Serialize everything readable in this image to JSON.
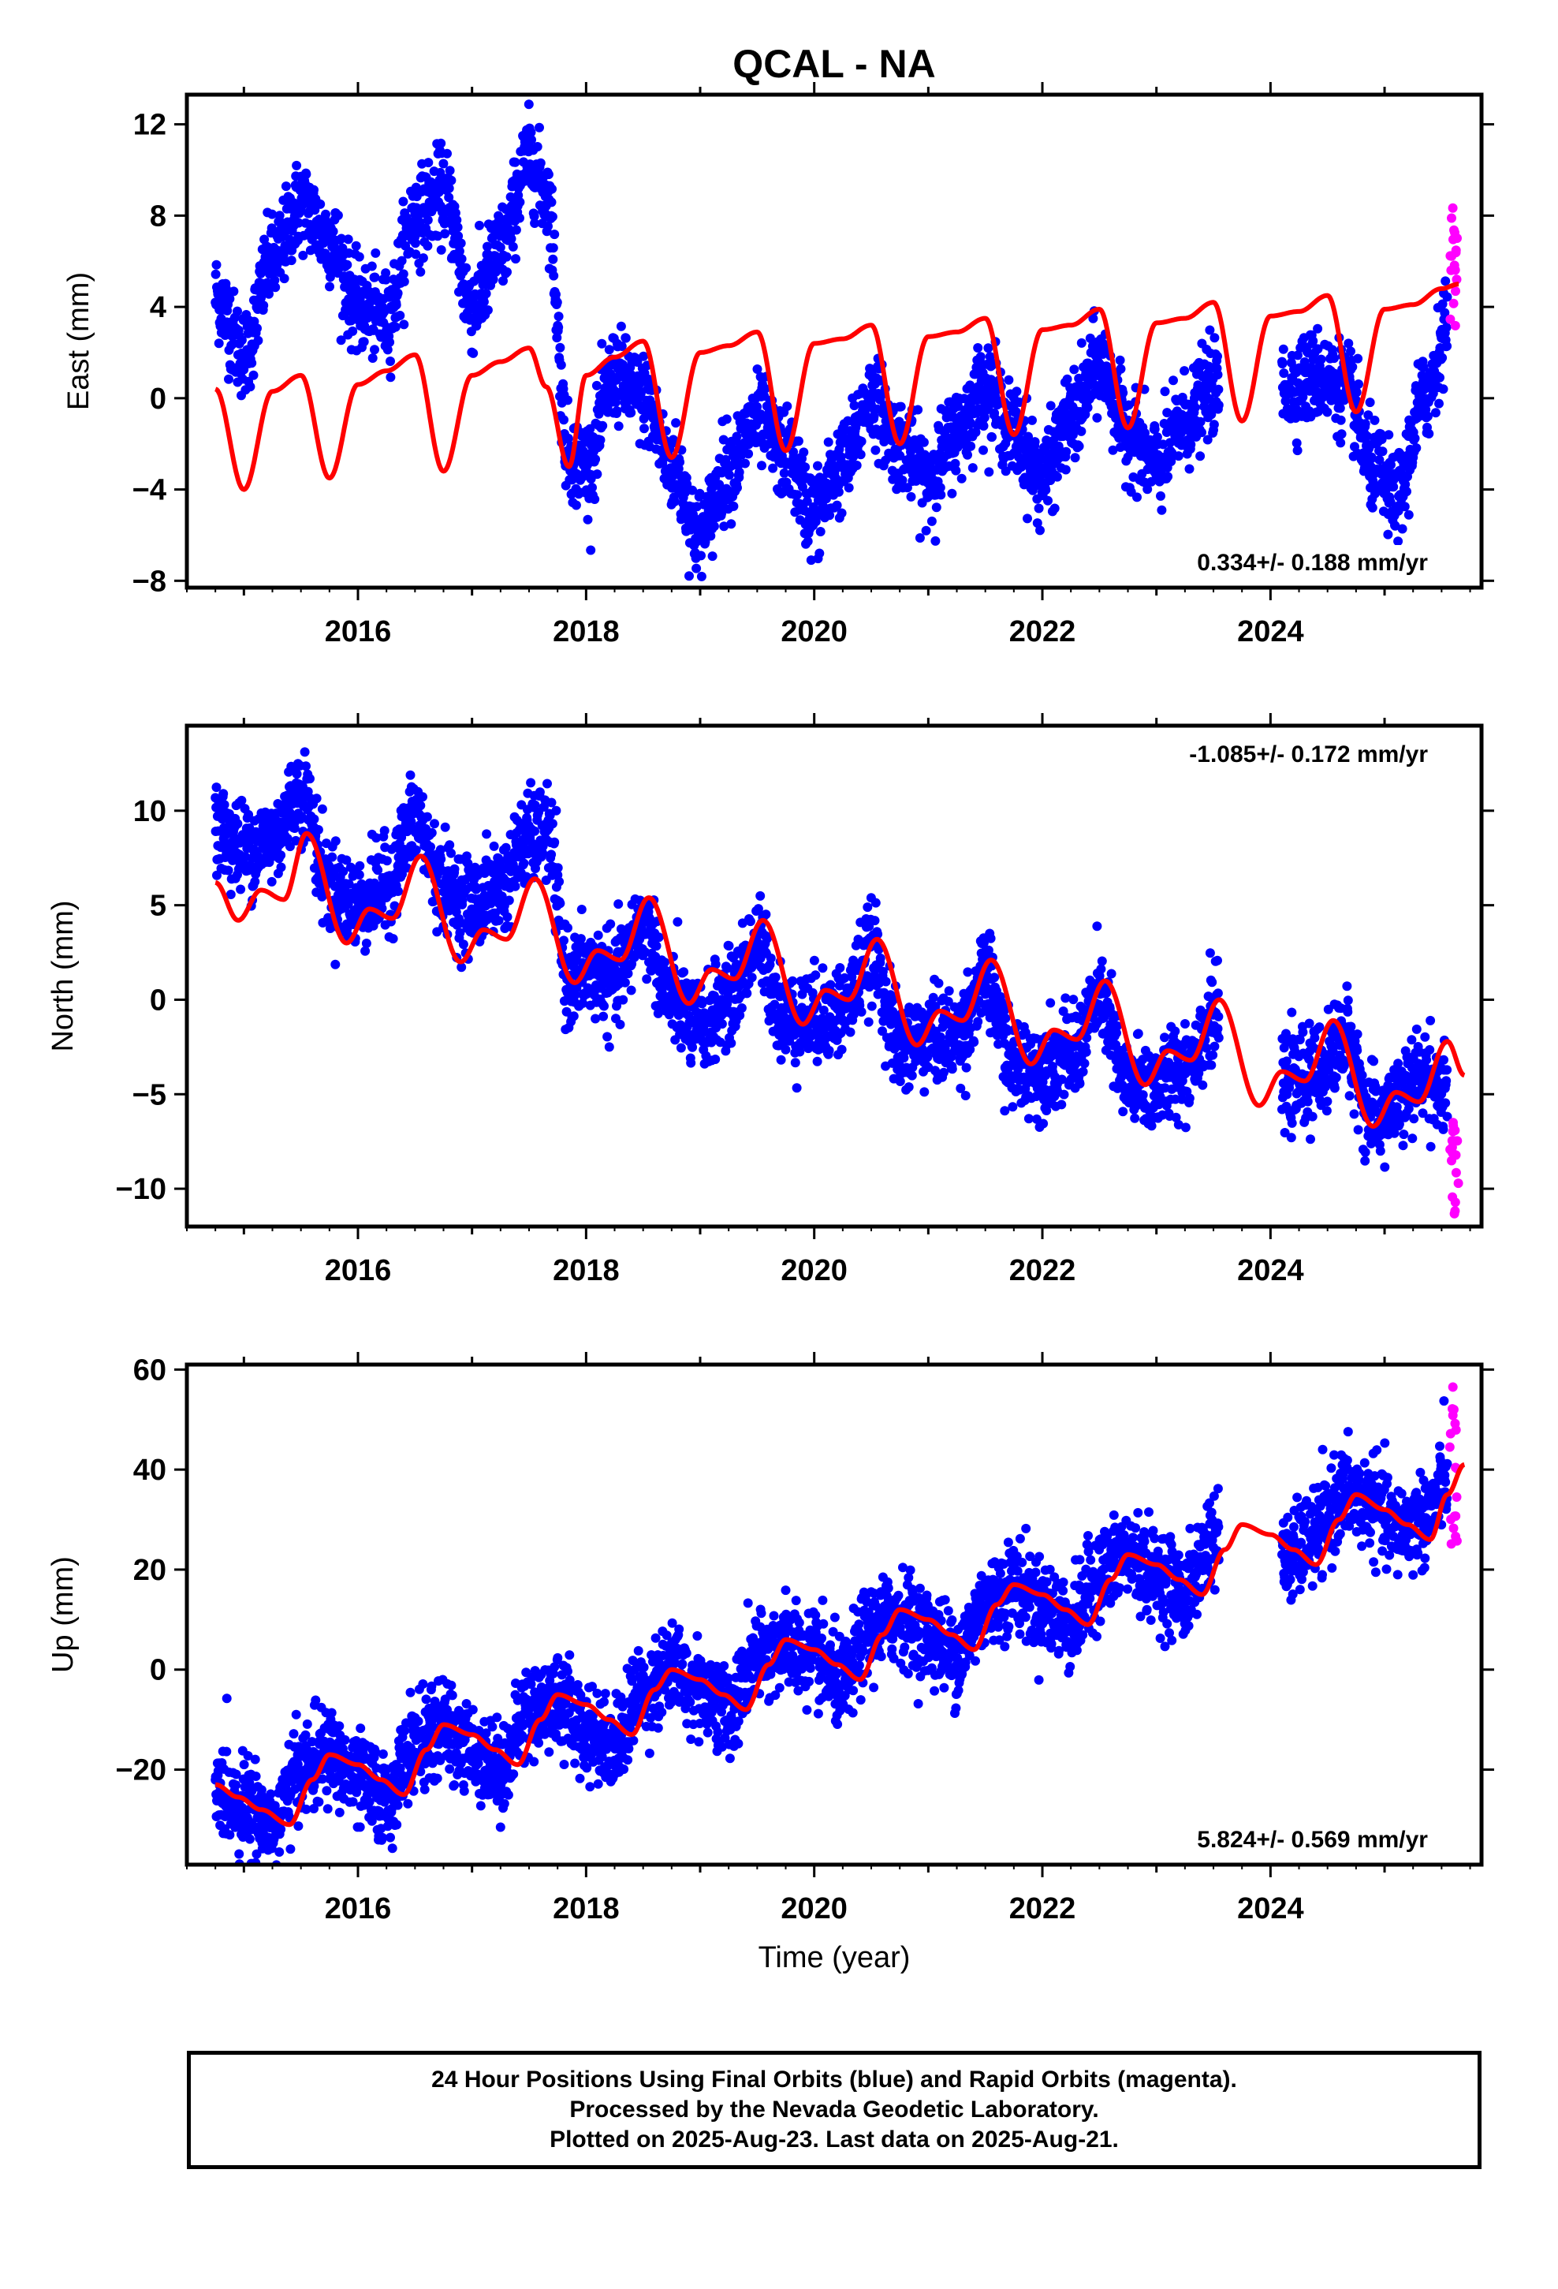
{
  "title": "QCAL - NA",
  "footer": {
    "line1": "24 Hour Positions Using Final Orbits (blue) and Rapid Orbits (magenta).",
    "line2": "Processed by the Nevada Geodetic Laboratory.",
    "line3": "Plotted on 2025-Aug-23. Last data on 2025-Aug-21."
  },
  "colors": {
    "final_orbits": "#0000ff",
    "rapid_orbits": "#ff00ff",
    "model": "#ff0000",
    "frame": "#000000"
  },
  "chart_data": [
    {
      "type": "scatter",
      "id": "east",
      "ylabel": "East (mm)",
      "xlabel": "",
      "rate": "0.334+/- 0.188 mm/yr",
      "xlim": [
        2014.5,
        2025.85
      ],
      "ylim": [
        -8.3,
        13.3
      ],
      "yticks": [
        -8,
        -4,
        0,
        4,
        8,
        12
      ],
      "xticks": [
        2016,
        2018,
        2020,
        2022,
        2024
      ],
      "yticks_labeled": [
        -8,
        -4,
        0,
        4,
        8,
        12
      ],
      "gaps": [
        [
          2023.55,
          2024.1
        ]
      ],
      "series": [
        {
          "type": "scatter",
          "color": "#0000ff",
          "x": [
            2014.75,
            2015.0,
            2015.25,
            2015.5,
            2015.75,
            2016.0,
            2016.25,
            2016.5,
            2016.75,
            2017.0,
            2017.25,
            2017.5,
            2017.65,
            2017.85,
            2018.0,
            2018.25,
            2018.5,
            2018.75,
            2019.0,
            2019.25,
            2019.5,
            2019.75,
            2020.0,
            2020.25,
            2020.5,
            2020.75,
            2021.0,
            2021.25,
            2021.5,
            2021.75,
            2022.0,
            2022.25,
            2022.5,
            2022.75,
            2023.0,
            2023.25,
            2023.5,
            2024.15,
            2024.4,
            2024.65,
            2024.9,
            2025.1,
            2025.35,
            2025.55
          ],
          "y": [
            4.5,
            2.0,
            6.0,
            8.5,
            7.0,
            4.0,
            3.5,
            8.0,
            9.0,
            4.0,
            6.5,
            10.5,
            9.0,
            -2.5,
            -3.0,
            1.0,
            0.0,
            -3.0,
            -6.0,
            -3.0,
            -1.0,
            -2.5,
            -5.0,
            -3.0,
            0.0,
            -2.0,
            -3.5,
            -1.5,
            0.5,
            -1.5,
            -3.5,
            -1.0,
            1.5,
            -1.5,
            -3.0,
            -1.0,
            0.5,
            0.5,
            1.0,
            0.5,
            -3.0,
            -4.5,
            0.0,
            3.0
          ]
        },
        {
          "type": "scatter",
          "color": "#ff00ff",
          "x": [
            2025.58,
            2025.6,
            2025.62,
            2025.64
          ],
          "y": [
            8.8,
            6.5,
            5.0,
            3.0
          ]
        },
        {
          "type": "line",
          "color": "#ff0000",
          "x": [
            2014.75,
            2015.0,
            2015.25,
            2015.5,
            2015.75,
            2016.0,
            2016.25,
            2016.5,
            2016.75,
            2017.0,
            2017.25,
            2017.5,
            2017.65,
            2017.85,
            2018.0,
            2018.25,
            2018.5,
            2018.75,
            2019.0,
            2019.25,
            2019.5,
            2019.75,
            2020.0,
            2020.25,
            2020.5,
            2020.75,
            2021.0,
            2021.25,
            2021.5,
            2021.75,
            2022.0,
            2022.25,
            2022.5,
            2022.75,
            2023.0,
            2023.25,
            2023.5,
            2023.75,
            2024.0,
            2024.25,
            2024.5,
            2024.75,
            2025.0,
            2025.25,
            2025.5,
            2025.65
          ],
          "y": [
            0.4,
            -4.0,
            0.3,
            1.0,
            -3.5,
            0.6,
            1.2,
            1.9,
            -3.2,
            1.0,
            1.6,
            2.2,
            0.5,
            -3.0,
            1.0,
            1.8,
            2.5,
            -2.6,
            2.0,
            2.3,
            2.9,
            -2.3,
            2.4,
            2.6,
            3.2,
            -2.0,
            2.7,
            2.9,
            3.5,
            -1.6,
            3.0,
            3.2,
            3.9,
            -1.3,
            3.3,
            3.5,
            4.2,
            -1.0,
            3.6,
            3.8,
            4.5,
            -0.6,
            3.9,
            4.1,
            4.8,
            5.0
          ]
        }
      ]
    },
    {
      "type": "scatter",
      "id": "north",
      "ylabel": "North (mm)",
      "xlabel": "",
      "rate": "-1.085+/- 0.172 mm/yr",
      "xlim": [
        2014.5,
        2025.85
      ],
      "ylim": [
        -12.0,
        14.5
      ],
      "yticks": [
        -10,
        -5,
        0,
        5,
        10
      ],
      "xticks": [
        2016,
        2018,
        2020,
        2022,
        2024
      ],
      "yticks_labeled": [
        -10,
        -5,
        0,
        5,
        10
      ],
      "gaps": [
        [
          2023.55,
          2024.1
        ]
      ],
      "series": [
        {
          "type": "scatter",
          "color": "#0000ff",
          "x": [
            2014.75,
            2015.0,
            2015.25,
            2015.5,
            2015.75,
            2016.0,
            2016.25,
            2016.5,
            2016.75,
            2017.0,
            2017.25,
            2017.5,
            2017.65,
            2017.85,
            2018.0,
            2018.25,
            2018.5,
            2018.75,
            2019.0,
            2019.25,
            2019.5,
            2019.75,
            2020.0,
            2020.25,
            2020.5,
            2020.75,
            2021.0,
            2021.25,
            2021.5,
            2021.75,
            2022.0,
            2022.25,
            2022.5,
            2022.75,
            2023.0,
            2023.25,
            2023.5,
            2024.15,
            2024.4,
            2024.65,
            2024.9,
            2025.1,
            2025.35,
            2025.55
          ],
          "y": [
            9.0,
            8.0,
            8.5,
            11.0,
            6.0,
            5.0,
            6.0,
            9.5,
            6.0,
            5.0,
            6.0,
            8.5,
            9.0,
            1.0,
            1.5,
            1.0,
            4.0,
            0.0,
            -1.5,
            0.0,
            3.0,
            -1.0,
            -1.0,
            -0.5,
            2.5,
            -2.5,
            -2.0,
            -2.0,
            1.0,
            -3.5,
            -3.5,
            -3.0,
            0.0,
            -4.5,
            -4.5,
            -3.5,
            -1.0,
            -4.5,
            -4.0,
            -2.0,
            -6.5,
            -5.5,
            -4.0,
            -5.0
          ]
        },
        {
          "type": "scatter",
          "color": "#ff00ff",
          "x": [
            2025.58,
            2025.6,
            2025.62,
            2025.64
          ],
          "y": [
            -6.5,
            -8.0,
            -10.0,
            -11.5
          ]
        },
        {
          "type": "line",
          "color": "#ff0000",
          "x": [
            2014.75,
            2014.95,
            2015.15,
            2015.35,
            2015.55,
            2015.9,
            2016.1,
            2016.3,
            2016.55,
            2016.9,
            2017.1,
            2017.3,
            2017.55,
            2017.9,
            2018.1,
            2018.3,
            2018.55,
            2018.9,
            2019.1,
            2019.3,
            2019.55,
            2019.9,
            2020.1,
            2020.3,
            2020.55,
            2020.9,
            2021.1,
            2021.3,
            2021.55,
            2021.9,
            2022.1,
            2022.3,
            2022.55,
            2022.9,
            2023.1,
            2023.3,
            2023.55,
            2023.9,
            2024.1,
            2024.3,
            2024.55,
            2024.9,
            2025.1,
            2025.3,
            2025.55,
            2025.7
          ],
          "y": [
            6.2,
            4.2,
            5.8,
            5.3,
            8.8,
            3.0,
            4.8,
            4.3,
            7.6,
            2.0,
            3.7,
            3.2,
            6.4,
            0.9,
            2.6,
            2.1,
            5.4,
            -0.2,
            1.6,
            1.1,
            4.2,
            -1.3,
            0.5,
            0.0,
            3.2,
            -2.4,
            -0.6,
            -1.1,
            2.1,
            -3.4,
            -1.6,
            -2.1,
            1.0,
            -4.5,
            -2.7,
            -3.2,
            0.0,
            -5.6,
            -3.8,
            -4.3,
            -1.1,
            -6.7,
            -4.9,
            -5.4,
            -2.2,
            -4.0
          ]
        }
      ]
    },
    {
      "type": "scatter",
      "id": "up",
      "ylabel": "Up (mm)",
      "xlabel": "Time (year)",
      "rate": "5.824+/- 0.569 mm/yr",
      "xlim": [
        2014.5,
        2025.85
      ],
      "ylim": [
        -39,
        61
      ],
      "yticks": [
        -20,
        0,
        20,
        40,
        60
      ],
      "xticks": [
        2016,
        2018,
        2020,
        2022,
        2024
      ],
      "yticks_labeled": [
        -20,
        0,
        20,
        40,
        60
      ],
      "gaps": [
        [
          2023.55,
          2024.1
        ]
      ],
      "series": [
        {
          "type": "scatter",
          "color": "#0000ff",
          "x": [
            2014.75,
            2015.0,
            2015.25,
            2015.5,
            2015.75,
            2016.0,
            2016.25,
            2016.5,
            2016.75,
            2017.0,
            2017.25,
            2017.5,
            2017.75,
            2018.0,
            2018.25,
            2018.5,
            2018.75,
            2019.0,
            2019.25,
            2019.5,
            2019.75,
            2020.0,
            2020.25,
            2020.5,
            2020.75,
            2021.0,
            2021.25,
            2021.5,
            2021.75,
            2022.0,
            2022.25,
            2022.5,
            2022.75,
            2023.0,
            2023.25,
            2023.5,
            2024.15,
            2024.4,
            2024.65,
            2024.9,
            2025.1,
            2025.35,
            2025.55
          ],
          "y": [
            -24,
            -27,
            -31,
            -20,
            -17,
            -22,
            -26,
            -15,
            -12,
            -16,
            -20,
            -8,
            -6,
            -12,
            -15,
            -4,
            0,
            -4,
            -8,
            2,
            5,
            2,
            -3,
            8,
            11,
            7,
            3,
            13,
            17,
            13,
            9,
            19,
            23,
            19,
            15,
            27,
            22,
            27,
            35,
            33,
            28,
            30,
            38
          ]
        },
        {
          "type": "scatter",
          "color": "#ff00ff",
          "x": [
            2025.58,
            2025.6,
            2025.62,
            2025.64
          ],
          "y": [
            58,
            50,
            40,
            25
          ]
        },
        {
          "type": "line",
          "color": "#ff0000",
          "x": [
            2014.75,
            2014.95,
            2015.15,
            2015.4,
            2015.6,
            2015.75,
            2016.0,
            2016.2,
            2016.4,
            2016.6,
            2016.75,
            2017.0,
            2017.2,
            2017.4,
            2017.6,
            2017.75,
            2018.0,
            2018.2,
            2018.4,
            2018.6,
            2018.75,
            2019.0,
            2019.2,
            2019.4,
            2019.6,
            2019.75,
            2020.0,
            2020.2,
            2020.4,
            2020.6,
            2020.75,
            2021.0,
            2021.2,
            2021.4,
            2021.6,
            2021.75,
            2022.0,
            2022.2,
            2022.4,
            2022.6,
            2022.75,
            2023.0,
            2023.2,
            2023.4,
            2023.6,
            2023.75,
            2024.0,
            2024.2,
            2024.4,
            2024.6,
            2024.75,
            2025.0,
            2025.2,
            2025.4,
            2025.55,
            2025.7
          ],
          "y": [
            -23,
            -25.5,
            -28,
            -31,
            -22,
            -17,
            -19,
            -22,
            -25,
            -16,
            -11,
            -13,
            -16,
            -19,
            -10,
            -5,
            -7,
            -10,
            -13,
            -4,
            0,
            -2,
            -5,
            -8,
            1,
            6,
            4,
            1,
            -2,
            7,
            12,
            10,
            7,
            4,
            13,
            17,
            15,
            12,
            9,
            18,
            23,
            21,
            18,
            15,
            24,
            29,
            27,
            24,
            21,
            30,
            35,
            32,
            29,
            26,
            35,
            41
          ]
        }
      ]
    }
  ]
}
